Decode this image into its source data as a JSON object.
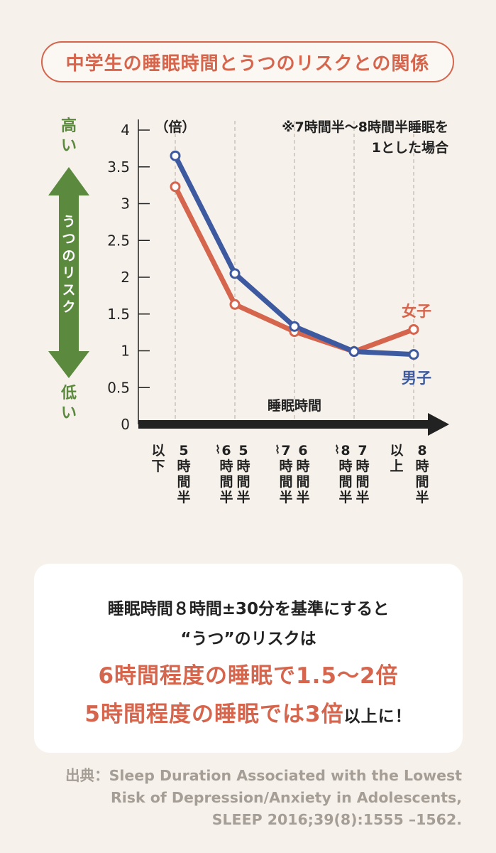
{
  "header": {
    "title": "中学生の睡眠時間とうつのリスクとの関係"
  },
  "chart_data": {
    "type": "line",
    "title": "",
    "unit_label": "（倍）",
    "note_lines": [
      "※7時間半～8時間半睡眠を",
      "1とした場合"
    ],
    "xlabel": "睡眠時間",
    "ylim": [
      0,
      4
    ],
    "yticks": [
      "0",
      "0.5",
      "1",
      "1.5",
      "2",
      "2.5",
      "3",
      "3.5",
      "4"
    ],
    "categories": [
      [
        "5",
        "以下",
        "時間",
        "半"
      ],
      [
        "5",
        "〜",
        "時間",
        "半",
        "6",
        "時間",
        "半"
      ],
      [
        "6",
        "〜",
        "時間",
        "半",
        "7",
        "時間",
        "半"
      ],
      [
        "7",
        "〜",
        "時間",
        "半",
        "8",
        "時間",
        "半"
      ],
      [
        "8",
        "以上",
        "時間",
        "半"
      ]
    ],
    "series": [
      {
        "name": "男子",
        "values": [
          3.65,
          2.05,
          1.33,
          0.99,
          0.95
        ]
      },
      {
        "name": "女子",
        "values": [
          3.23,
          1.63,
          1.26,
          0.99,
          1.29
        ]
      }
    ],
    "yaxis_title": "うつのリスク",
    "yaxis_high": "高い",
    "yaxis_low": "低い",
    "colors": {
      "boys": "#3d5aa0",
      "girls": "#d5654d",
      "green": "#5b8a3f",
      "axis": "#222222",
      "grid": "#c8c2bb"
    }
  },
  "summary": {
    "line1": "睡眠時間８時間±30分を基準にすると",
    "line2": "“うつ”のリスクは",
    "line3": "6時間程度の睡眠で1.5～2倍",
    "line4_main": "5時間程度の睡眠では3倍",
    "line4_tail": "以上に！"
  },
  "source": {
    "line1": "出典：Sleep Duration Associated with the Lowest",
    "line2": "Risk of Depression/Anxiety in Adolescents,",
    "line3": "SLEEP 2016;39(8):1555 –1562."
  }
}
